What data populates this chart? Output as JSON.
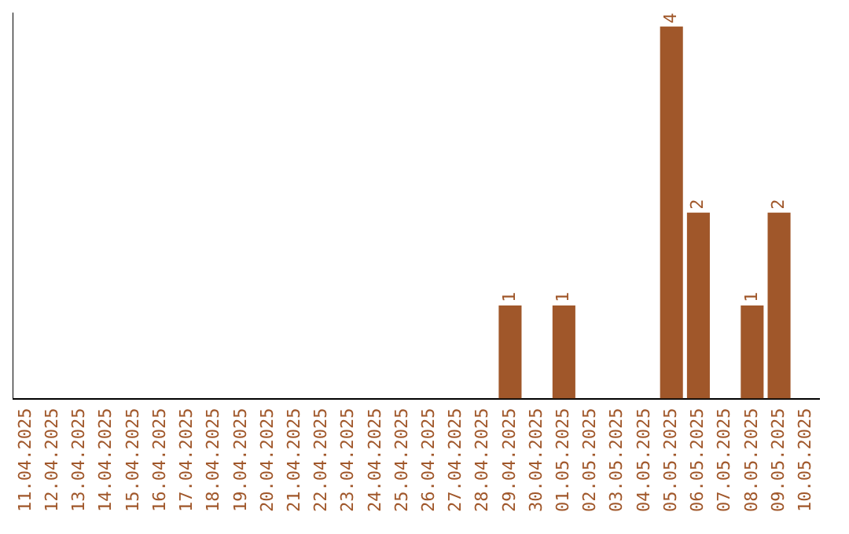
{
  "chart_data": {
    "type": "bar",
    "categories": [
      "11.04.2025",
      "12.04.2025",
      "13.04.2025",
      "14.04.2025",
      "15.04.2025",
      "16.04.2025",
      "17.04.2025",
      "18.04.2025",
      "19.04.2025",
      "20.04.2025",
      "21.04.2025",
      "22.04.2025",
      "23.04.2025",
      "24.04.2025",
      "25.04.2025",
      "26.04.2025",
      "27.04.2025",
      "28.04.2025",
      "29.04.2025",
      "30.04.2025",
      "01.05.2025",
      "02.05.2025",
      "03.05.2025",
      "04.05.2025",
      "05.05.2025",
      "06.05.2025",
      "07.05.2025",
      "08.05.2025",
      "09.05.2025",
      "10.05.2025"
    ],
    "values": [
      null,
      null,
      null,
      null,
      null,
      null,
      null,
      null,
      null,
      null,
      null,
      null,
      null,
      null,
      null,
      null,
      null,
      null,
      1,
      null,
      1,
      null,
      null,
      null,
      4,
      2,
      null,
      1,
      2,
      null
    ],
    "data_labels": true,
    "color": "#a0572a",
    "ylim": [
      0,
      4.15
    ],
    "tick_labels": "x",
    "grid": false,
    "legend": false
  }
}
